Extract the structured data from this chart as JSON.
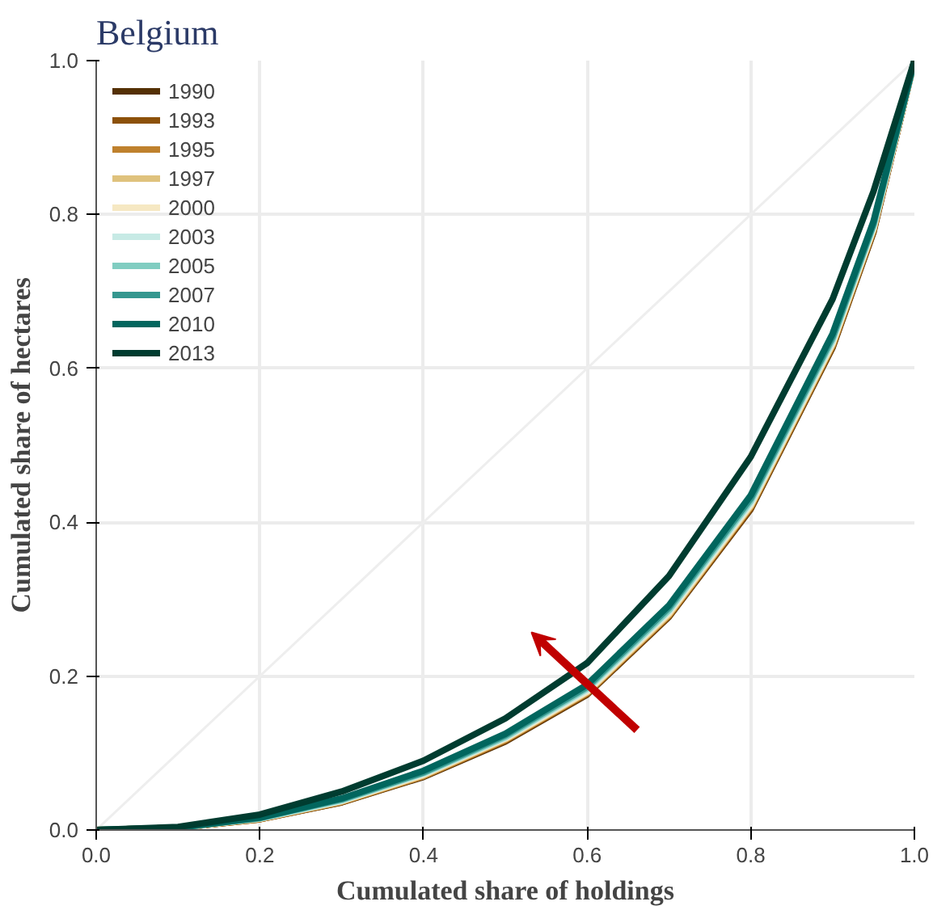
{
  "chart_data": {
    "type": "line",
    "title": "Belgium",
    "xlabel": "Cumulated share of holdings",
    "ylabel": "Cumulated share of hectares",
    "x": [
      0,
      0.1,
      0.2,
      0.3,
      0.4,
      0.5,
      0.6,
      0.7,
      0.8,
      0.9,
      0.95,
      1
    ],
    "xlim": [
      0,
      1
    ],
    "ylim": [
      0,
      1
    ],
    "xticks": [
      {
        "value": 0,
        "label": "0.0"
      },
      0.2,
      0.4,
      0.6,
      0.8,
      {
        "value": 1,
        "label": "1.0"
      }
    ],
    "yticks": [
      {
        "value": 0,
        "label": "0.0"
      },
      0.2,
      0.4,
      0.6,
      0.8,
      {
        "value": 1,
        "label": "1.0"
      }
    ],
    "grid": true,
    "legend": "top left",
    "line_style": "solid",
    "series": [
      {
        "color": "#eeeeee",
        "x": [
          0,
          1
        ],
        "values": [
          0,
          1
        ]
      },
      {
        "name": "1990",
        "color": "#543005",
        "values": [
          0,
          0.003,
          0.014,
          0.036,
          0.069,
          0.115,
          0.176,
          0.277,
          0.417,
          0.627,
          0.777,
          1
        ]
      },
      {
        "name": "1993",
        "color": "#8c510a",
        "values": [
          0,
          0.003,
          0.014,
          0.036,
          0.07,
          0.116,
          0.177,
          0.278,
          0.418,
          0.628,
          0.778,
          1
        ]
      },
      {
        "name": "1995",
        "color": "#bf812d",
        "values": [
          0,
          0.003,
          0.014,
          0.037,
          0.07,
          0.117,
          0.178,
          0.279,
          0.42,
          0.63,
          0.78,
          1
        ]
      },
      {
        "name": "1997",
        "color": "#dfc27d",
        "values": [
          0,
          0.003,
          0.015,
          0.037,
          0.071,
          0.118,
          0.179,
          0.28,
          0.421,
          0.631,
          0.781,
          1
        ]
      },
      {
        "name": "2000",
        "color": "#f6e8c3",
        "values": [
          0,
          0.003,
          0.015,
          0.038,
          0.072,
          0.119,
          0.18,
          0.282,
          0.423,
          0.633,
          0.782,
          1
        ]
      },
      {
        "name": "2003",
        "color": "#c7eae5",
        "values": [
          0,
          0.003,
          0.015,
          0.038,
          0.073,
          0.12,
          0.182,
          0.284,
          0.425,
          0.635,
          0.784,
          1
        ]
      },
      {
        "name": "2005",
        "color": "#80cdc1",
        "values": [
          0,
          0.003,
          0.015,
          0.039,
          0.074,
          0.121,
          0.184,
          0.286,
          0.428,
          0.638,
          0.786,
          1
        ]
      },
      {
        "name": "2007",
        "color": "#35978f",
        "values": [
          0,
          0.003,
          0.016,
          0.04,
          0.075,
          0.123,
          0.186,
          0.289,
          0.431,
          0.641,
          0.788,
          1
        ]
      },
      {
        "name": "2010",
        "color": "#01665e",
        "values": [
          0,
          0.003,
          0.016,
          0.041,
          0.077,
          0.125,
          0.189,
          0.292,
          0.435,
          0.645,
          0.791,
          1
        ]
      },
      {
        "name": "2013",
        "color": "#003c30",
        "values": [
          0,
          0.004,
          0.02,
          0.05,
          0.09,
          0.145,
          0.217,
          0.33,
          0.485,
          0.69,
          0.83,
          1
        ]
      }
    ]
  }
}
